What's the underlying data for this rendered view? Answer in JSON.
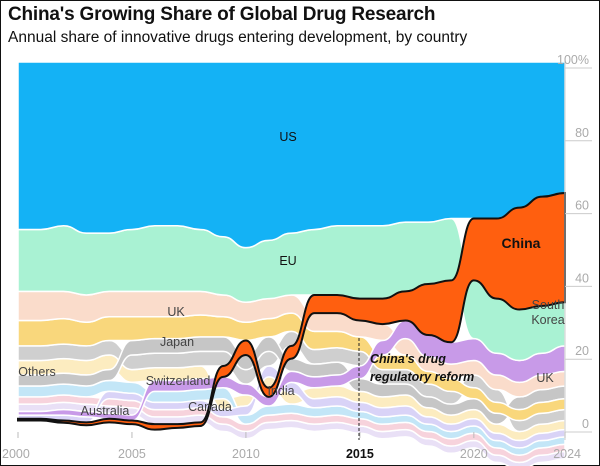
{
  "title": "China's Growing Share of Global Drug Research",
  "subtitle": "Annual share of innovative drugs entering development, by country",
  "chart_data": {
    "type": "area",
    "subtype": "ranked streamgraph (ribbon), largest share on top",
    "title": "China's Growing Share of Global Drug Research",
    "subtitle": "Annual share of innovative drugs entering development, by country",
    "x": [
      2000,
      2001,
      2002,
      2003,
      2004,
      2005,
      2006,
      2007,
      2008,
      2009,
      2010,
      2011,
      2012,
      2013,
      2014,
      2015,
      2016,
      2017,
      2018,
      2019,
      2020,
      2021,
      2022,
      2023,
      2024
    ],
    "xlim": [
      2000,
      2024
    ],
    "ylim": [
      0,
      100
    ],
    "x_ticks": [
      "2000",
      "2005",
      "2010",
      "2015",
      "2020",
      "2024"
    ],
    "x_tick_values": [
      2000,
      2005,
      2010,
      2015,
      2020,
      2024
    ],
    "y_ticks": [
      "0",
      "20",
      "40",
      "60",
      "80",
      "100%"
    ],
    "y_tick_values": [
      0,
      20,
      40,
      60,
      80,
      100
    ],
    "y_axis_side": "right",
    "grid": false,
    "legend": "none (direct labels)",
    "series": [
      {
        "name": "US",
        "color": "#14b2f5",
        "values": [
          46,
          46,
          45,
          47,
          47,
          46,
          45,
          45,
          46,
          48,
          51,
          49,
          47,
          46,
          45,
          45,
          45,
          44,
          44,
          43,
          43,
          43,
          40,
          37,
          36
        ]
      },
      {
        "name": "EU",
        "color": "#a9f2d3",
        "values": [
          17,
          17,
          18,
          17,
          16,
          17,
          18,
          18,
          17,
          16,
          15,
          16,
          17,
          18,
          19,
          20,
          20,
          19,
          17,
          17,
          16,
          15,
          14,
          13,
          12
        ]
      },
      {
        "name": "China",
        "color": "#ff5f0f",
        "highlight": true,
        "values": [
          0.5,
          0.5,
          0.6,
          0.8,
          1,
          1,
          1.5,
          1,
          1,
          3,
          4,
          2.5,
          3.5,
          5,
          5,
          6,
          7,
          8,
          14,
          17,
          17,
          22,
          28,
          30,
          30
        ]
      },
      {
        "name": "South Korea",
        "color": "#c89ae8",
        "values": [
          1,
          1,
          1.5,
          1.5,
          1.5,
          1.5,
          3,
          3,
          3,
          3,
          3,
          2.5,
          3,
          3,
          3,
          3.5,
          4,
          5,
          6,
          6,
          6,
          6,
          6,
          6,
          7
        ]
      },
      {
        "name": "UK",
        "color": "#fadccb",
        "values": [
          8,
          8,
          7.5,
          7.5,
          7,
          7,
          7,
          7,
          6.5,
          6,
          5.5,
          5.5,
          5,
          5,
          5,
          4.5,
          4.5,
          4.5,
          4,
          4,
          4,
          4,
          4,
          4,
          4
        ]
      },
      {
        "name": "Japan",
        "color": "#f9d77c",
        "values": [
          7,
          7,
          7,
          6.5,
          6.5,
          6.5,
          6,
          6,
          6,
          5.5,
          5,
          5,
          5,
          5,
          4.5,
          4,
          4,
          4,
          3.5,
          3.5,
          3,
          3,
          3,
          3,
          3
        ]
      },
      {
        "name": "Switzerland",
        "color": "#c6c6c6",
        "values": [
          3,
          3,
          3,
          3,
          3,
          4,
          4,
          4,
          4,
          4,
          4,
          4,
          3.5,
          3.5,
          3.5,
          3.5,
          3.5,
          3,
          3,
          3,
          3,
          3,
          3.5,
          3.5,
          3.5
        ]
      },
      {
        "name": "Others",
        "color": "#cfcfcf",
        "values": [
          4,
          4,
          4,
          4,
          4,
          4,
          4,
          4,
          4,
          4,
          4,
          4,
          4,
          4,
          4,
          4,
          4,
          4,
          3.5,
          3.5,
          3.5,
          3.5,
          3,
          3,
          3
        ]
      },
      {
        "name": "India",
        "color": "#d9d3f7",
        "values": [
          1,
          1,
          1.5,
          1.5,
          2,
          2,
          2,
          2,
          2,
          2,
          2.5,
          3,
          3,
          2.5,
          2.5,
          2.5,
          2.5,
          2.5,
          2,
          2,
          2,
          2,
          2,
          2,
          2
        ]
      },
      {
        "name": "Canada",
        "color": "#c3e6f7",
        "values": [
          3,
          3,
          3,
          3,
          3,
          3,
          3,
          3,
          3,
          3,
          2.5,
          2.5,
          2.5,
          2.5,
          2.5,
          2,
          2,
          2,
          2,
          2,
          2,
          2,
          2,
          2,
          2
        ]
      },
      {
        "name": "Australia",
        "color": "#f7d3dc",
        "values": [
          2,
          2,
          2,
          2,
          2,
          2,
          2,
          2,
          2,
          2,
          2,
          2,
          2,
          2,
          2,
          2,
          2,
          2,
          2,
          2,
          2,
          2,
          2,
          2,
          2
        ]
      },
      {
        "color": "#fcecc0",
        "values": [
          4,
          4,
          4,
          4,
          4,
          3.5,
          3.5,
          3.5,
          3.5,
          3,
          3,
          3,
          3,
          3,
          3,
          3,
          3,
          3,
          2.5,
          2.5,
          2.5,
          2.5,
          2.5,
          2.5,
          2.5
        ]
      },
      {
        "color": "#e9e0f6",
        "values": [
          2,
          2,
          2,
          2,
          2,
          2,
          2,
          2,
          2,
          2,
          2,
          2,
          2,
          2,
          2,
          2,
          2,
          2,
          2,
          2,
          2,
          2,
          2,
          2,
          2
        ]
      }
    ],
    "annotations": [
      {
        "x": 2015,
        "text_line1": "China's drug",
        "text_line2": "regulatory reform"
      }
    ],
    "highlight_tick": "2015"
  }
}
